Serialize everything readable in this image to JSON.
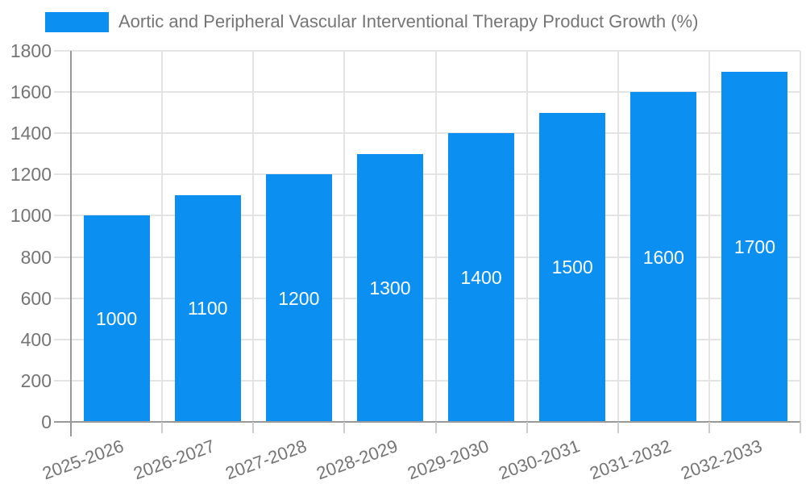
{
  "chart_data": {
    "type": "bar",
    "title": "Aortic and Peripheral Vascular Interventional Therapy Product Growth (%)",
    "categories": [
      "2025-2026",
      "2026-2027",
      "2027-2028",
      "2028-2029",
      "2029-2030",
      "2030-2031",
      "2031-2032",
      "2032-2033"
    ],
    "values": [
      1000,
      1100,
      1200,
      1300,
      1400,
      1500,
      1600,
      1700
    ],
    "xlabel": "",
    "ylabel": "",
    "ylim": [
      0,
      1800
    ],
    "yticks": [
      0,
      200,
      400,
      600,
      800,
      1000,
      1200,
      1400,
      1600,
      1800
    ],
    "grid": true,
    "legend_position": "top-left",
    "value_labels": "inside-center",
    "colors": {
      "bar": "#0B90F1",
      "bar_value_text": "#ffffff",
      "axis_text": "#757575",
      "axis_line": "#999999",
      "gridline": "#e4e4e4",
      "tick": "#cccccc",
      "background": "#ffffff"
    }
  },
  "legend": {
    "label": "Aortic and Peripheral Vascular Interventional Therapy Product Growth (%)"
  }
}
